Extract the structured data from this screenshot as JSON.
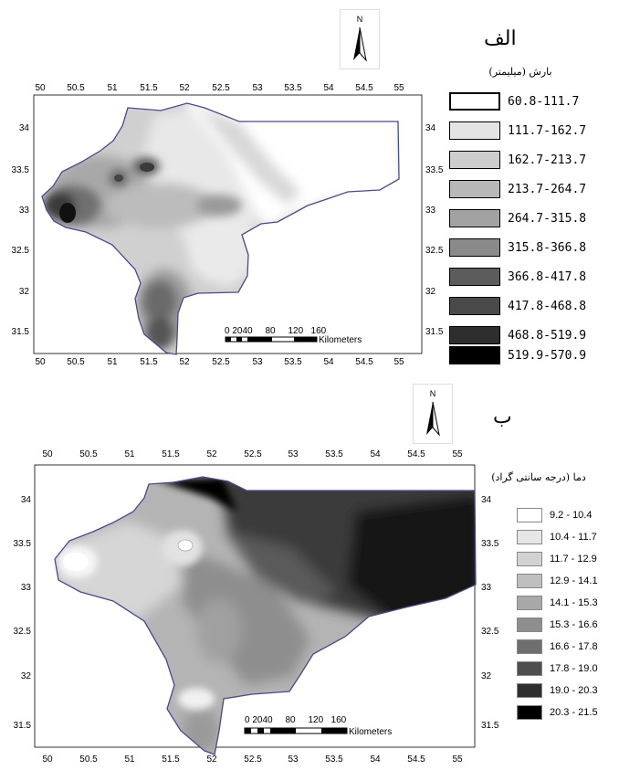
{
  "panels": [
    {
      "id": "alef",
      "label": "الف",
      "legend_title": "بارش (میلیمتر)",
      "legend": [
        {
          "range": "60.8-111.7",
          "color": "#ffffff"
        },
        {
          "range": "111.7-162.7",
          "color": "#e4e4e4"
        },
        {
          "range": "162.7-213.7",
          "color": "#cdcdcd"
        },
        {
          "range": "213.7-264.7",
          "color": "#b8b8b8"
        },
        {
          "range": "264.7-315.8",
          "color": "#a2a2a2"
        },
        {
          "range": "315.8-366.8",
          "color": "#8a8a8a"
        },
        {
          "range": "366.8-417.8",
          "color": "#5c5c5c"
        },
        {
          "range": "417.8-468.8",
          "color": "#4a4a4a"
        },
        {
          "range": "468.8-519.9",
          "color": "#2e2e2e"
        },
        {
          "range": "519.9-570.9",
          "color": "#000000"
        }
      ],
      "x_ticks": [
        "50",
        "50.5",
        "51",
        "51.5",
        "52",
        "52.5",
        "53",
        "53.5",
        "54",
        "54.5",
        "55"
      ],
      "y_ticks": [
        "34",
        "33.5",
        "33",
        "32.5",
        "32",
        "31.5"
      ],
      "scale_numbers": "0 2040     80     120   160",
      "scale_unit": "Kilometers",
      "north": "N"
    },
    {
      "id": "be",
      "label": "ب",
      "legend_title": "دما (درجه سانتی گراد)",
      "legend": [
        {
          "range": "9.2 - 10.4",
          "color": "#ffffff"
        },
        {
          "range": "10.4 - 11.7",
          "color": "#e6e6e6"
        },
        {
          "range": "11.7 - 12.9",
          "color": "#d2d2d2"
        },
        {
          "range": "12.9 - 14.1",
          "color": "#bebebe"
        },
        {
          "range": "14.1 - 15.3",
          "color": "#a8a8a8"
        },
        {
          "range": "15.3 - 16.6",
          "color": "#8e8e8e"
        },
        {
          "range": "16.6 - 17.8",
          "color": "#6e6e6e"
        },
        {
          "range": "17.8 - 19.0",
          "color": "#4e4e4e"
        },
        {
          "range": "19.0 - 20.3",
          "color": "#2e2e2e"
        },
        {
          "range": "20.3 - 21.5",
          "color": "#000000"
        }
      ],
      "x_ticks": [
        "50",
        "50.5",
        "51",
        "51.5",
        "52",
        "52.5",
        "53",
        "53.5",
        "54",
        "54.5",
        "55"
      ],
      "y_ticks": [
        "34",
        "33.5",
        "33",
        "32.5",
        "32",
        "31.5"
      ],
      "scale_numbers": "0 2040     80     120   160",
      "scale_unit": "Kilometers",
      "north": "N"
    }
  ]
}
